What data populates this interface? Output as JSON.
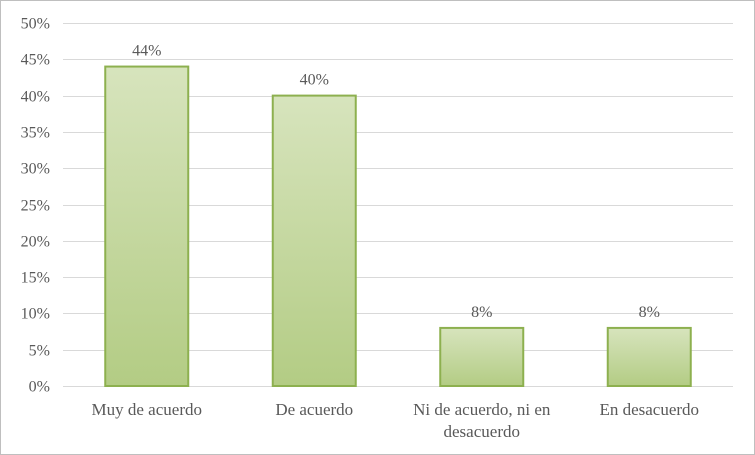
{
  "chart_data": {
    "type": "bar",
    "title": "",
    "xlabel": "",
    "ylabel": "",
    "categories": [
      "Muy de acuerdo",
      "De acuerdo",
      "Ni de acuerdo, ni en desacuerdo",
      "En  desacuerdo"
    ],
    "category_label_lines": [
      [
        "Muy de acuerdo"
      ],
      [
        "De acuerdo"
      ],
      [
        "Ni de acuerdo, ni en",
        "desacuerdo"
      ],
      [
        "En  desacuerdo"
      ]
    ],
    "values": [
      44,
      40,
      8,
      8
    ],
    "data_labels": [
      "44%",
      "40%",
      "8%",
      "8%"
    ],
    "ylim": [
      0,
      50
    ],
    "y_ticks": [
      0,
      5,
      10,
      15,
      20,
      25,
      30,
      35,
      40,
      45,
      50
    ],
    "y_tick_labels": [
      "0%",
      "5%",
      "10%",
      "15%",
      "20%",
      "25%",
      "30%",
      "35%",
      "40%",
      "45%",
      "50%"
    ],
    "grid": true,
    "legend": "none",
    "colors": {
      "bar_fill_top": "#d7e4bd",
      "bar_fill_bottom": "#b3cc84",
      "bar_border": "#8db04f",
      "grid": "#d9d9d9",
      "text": "#595959"
    }
  }
}
